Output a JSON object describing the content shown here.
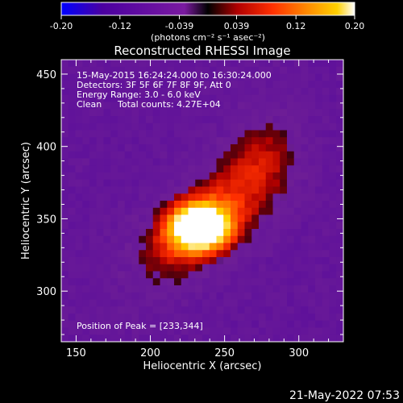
{
  "colorbar": {
    "ticks": [
      "-0.20",
      "-0.12",
      "-0.039",
      "0.039",
      "0.12",
      "0.20"
    ],
    "tick_values": [
      -0.2,
      -0.12,
      -0.039,
      0.039,
      0.12,
      0.2
    ],
    "unit_label": "(photons cm⁻² s⁻¹ asec⁻²)",
    "range": [
      -0.2,
      0.2
    ],
    "colors": [
      "#0000ff",
      "#4b00a0",
      "#7a1aa0",
      "#000000",
      "#b00000",
      "#ff3000",
      "#ff8c00",
      "#ffd000",
      "#ffffff"
    ]
  },
  "chart_data": {
    "type": "heatmap",
    "title": "Reconstructed RHESSI Image",
    "xlabel": "Heliocentric X (arcsec)",
    "ylabel": "Heliocentric Y (arcsec)",
    "xlim": [
      140,
      330
    ],
    "ylim": [
      265,
      460
    ],
    "x_ticks": [
      "150",
      "200",
      "250",
      "300"
    ],
    "y_ticks": [
      "300",
      "350",
      "400",
      "450"
    ],
    "x_tick_values": [
      150,
      200,
      250,
      300
    ],
    "y_tick_values": [
      300,
      350,
      400,
      450
    ],
    "peak": [
      233,
      344
    ],
    "annotations": {
      "time_range": "15-May-2015 16:24:24.000 to 16:30:24.000",
      "detectors": "Detectors: 3F 5F 6F 7F 8F 9F, Att 0",
      "energy": "Energy Range: 3.0 - 6.0 keV",
      "clean": "Clean",
      "total_counts": "Total counts: 4.27E+04",
      "peak_position": "Position of Peak = [233,344]"
    }
  },
  "footer": {
    "date": "21-May-2022 07:53"
  }
}
